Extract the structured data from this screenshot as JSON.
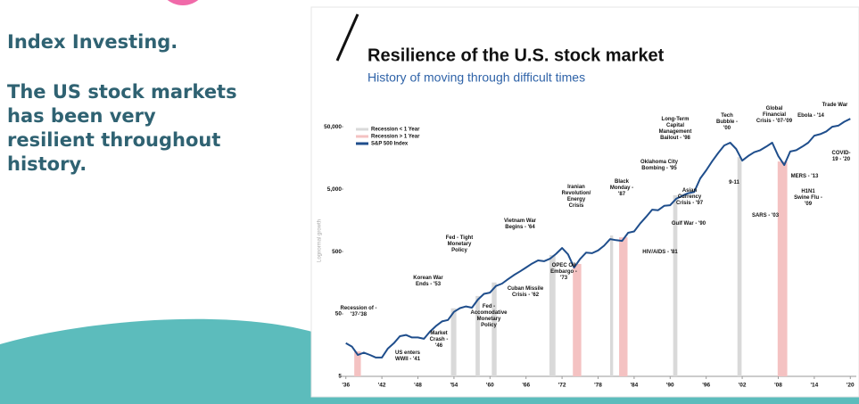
{
  "slide": {
    "heading": "Index Investing.",
    "body": "The US stock markets\nhas been very\nresilient throughout\nhistory."
  },
  "chart_data": {
    "type": "line",
    "title": "Resilience of the U.S. stock market",
    "subtitle": "History of moving through difficult times",
    "ylabel": "Lognormal growth",
    "log_scale": true,
    "ylim": [
      5,
      100000
    ],
    "yticks": [
      5,
      50,
      500,
      {
        "value": 5000,
        "label": "5,000"
      },
      {
        "value": 50000,
        "label": "50,000"
      }
    ],
    "xlim": [
      1935,
      2021
    ],
    "xticks": [
      {
        "value": 1936,
        "label": "'36"
      },
      {
        "value": 1942,
        "label": "'42"
      },
      {
        "value": 1948,
        "label": "'48"
      },
      {
        "value": 1954,
        "label": "'54"
      },
      {
        "value": 1960,
        "label": "'60"
      },
      {
        "value": 1966,
        "label": "'66"
      },
      {
        "value": 1972,
        "label": "'72"
      },
      {
        "value": 1978,
        "label": "'78"
      },
      {
        "value": 1984,
        "label": "'84"
      },
      {
        "value": 1990,
        "label": "'90"
      },
      {
        "value": 1996,
        "label": "'96"
      },
      {
        "value": 2002,
        "label": "'02"
      },
      {
        "value": 2008,
        "label": "'08"
      },
      {
        "value": 2014,
        "label": "'14"
      },
      {
        "value": 2020,
        "label": "'20"
      }
    ],
    "x": [
      1936,
      1937,
      1938,
      1939,
      1940,
      1941,
      1942,
      1943,
      1944,
      1945,
      1946,
      1947,
      1948,
      1949,
      1950,
      1951,
      1952,
      1953,
      1954,
      1955,
      1956,
      1957,
      1958,
      1959,
      1960,
      1961,
      1962,
      1963,
      1964,
      1965,
      1966,
      1967,
      1968,
      1969,
      1970,
      1971,
      1972,
      1973,
      1974,
      1975,
      1976,
      1977,
      1978,
      1979,
      1980,
      1981,
      1982,
      1983,
      1984,
      1985,
      1986,
      1987,
      1988,
      1989,
      1990,
      1991,
      1992,
      1993,
      1994,
      1995,
      1996,
      1997,
      1998,
      1999,
      2000,
      2001,
      2002,
      2003,
      2004,
      2005,
      2006,
      2007,
      2008,
      2009,
      2010,
      2011,
      2012,
      2013,
      2014,
      2015,
      2016,
      2017,
      2018,
      2019,
      2020
    ],
    "series": [
      {
        "name": "S&P 500 Index",
        "color": "#1f4e8c",
        "values": [
          17,
          15,
          11,
          12,
          11,
          10,
          10,
          14,
          17,
          22,
          23,
          21,
          21,
          20,
          26,
          32,
          38,
          40,
          54,
          62,
          66,
          63,
          85,
          105,
          110,
          140,
          153,
          180,
          210,
          240,
          277,
          320,
          360,
          350,
          384,
          460,
          570,
          450,
          277,
          380,
          480,
          470,
          520,
          620,
          792,
          760,
          740,
          1000,
          1050,
          1400,
          1800,
          2340,
          2300,
          2700,
          2760,
          3500,
          3900,
          4300,
          4500,
          7400,
          10000,
          14000,
          19000,
          25000,
          27700,
          22000,
          14300,
          17000,
          19500,
          21000,
          24000,
          27700,
          17000,
          12150,
          20000,
          21000,
          24000,
          27700,
          36000,
          38000,
          42000,
          50000,
          52000,
          60000,
          67000
        ]
      }
    ],
    "shading": [
      {
        "name": "Recession < 1 Year",
        "color": "#d9d9d9",
        "periods": [
          [
            1953.5,
            1954.4
          ],
          [
            1957.6,
            1958.3
          ],
          [
            1960.3,
            1961.1
          ],
          [
            1969.9,
            1970.9
          ],
          [
            1980.0,
            1980.5
          ],
          [
            1990.5,
            1991.2
          ],
          [
            2001.2,
            2001.9
          ]
        ]
      },
      {
        "name": "Recession > 1 Year",
        "color": "#f4c2c2",
        "periods": [
          [
            1937.4,
            1938.5
          ],
          [
            1973.8,
            1975.2
          ],
          [
            1981.5,
            1982.9
          ],
          [
            2007.9,
            2009.5
          ]
        ]
      }
    ],
    "annotations": [
      "Recession of -\n'37-'38",
      "US enters\nWWII - '41",
      "Market\nCrash -\n'46",
      "Korean War\nEnds - '53",
      "Fed - Tight\nMonetary\nPolicy",
      "Vietnam War\nBegins - '64",
      "Fed -\nAccomodative\nMonetary\nPolicy",
      "Cuban Missile\nCrisis - '62",
      "Iranian\nRevolution/\nEnergy\nCrisis",
      "OPEC Oil\nEmbargo -\n'73",
      "Black\nMonday -\n'87",
      "HIV/AIDS - '81",
      "Long-Term\nCapital\nManagement\nBailout - '98",
      "Oklahoma City\nBombing - '95",
      "Tech\nBubble -\n'00",
      "Asian\nCurrency\nCrisis - '97",
      "Gulf War - '90",
      "9-11",
      "Global\nFinancial\nCrisis - '07-'09",
      "SARS - '03",
      "Trade War",
      "Ebola - '14",
      "COVID-\n19 - '20",
      "MERS - '13",
      "H1N1\nSwine Flu -\n'09"
    ]
  }
}
